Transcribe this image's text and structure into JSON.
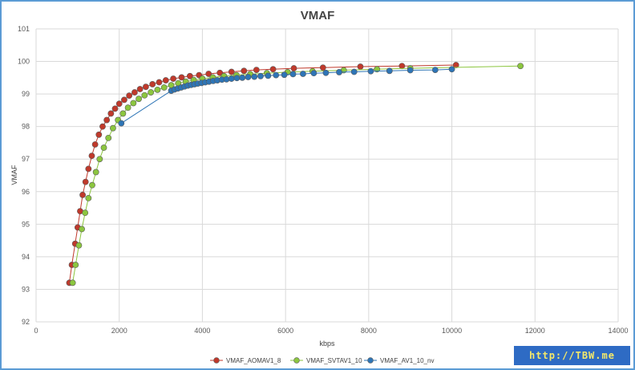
{
  "chart_data": {
    "type": "scatter",
    "title": "VMAF",
    "xlabel": "kbps",
    "ylabel": "VMAF",
    "xlim": [
      0,
      14000
    ],
    "ylim": [
      92,
      101
    ],
    "xticks": [
      0,
      2000,
      4000,
      6000,
      8000,
      10000,
      12000,
      14000
    ],
    "yticks": [
      92,
      93,
      94,
      95,
      96,
      97,
      98,
      99,
      100,
      101
    ],
    "grid": true,
    "legend_position": "bottom",
    "series": [
      {
        "name": "VMAF_AOMAV1_8",
        "color": "#c0392b",
        "x": [
          800,
          860,
          940,
          1000,
          1060,
          1120,
          1190,
          1260,
          1340,
          1420,
          1510,
          1600,
          1700,
          1800,
          1900,
          2000,
          2120,
          2240,
          2370,
          2500,
          2640,
          2800,
          2960,
          3120,
          3300,
          3500,
          3700,
          3920,
          4150,
          4420,
          4700,
          5000,
          5300,
          5700,
          6200,
          6900,
          7800,
          8800,
          10100
        ],
        "y": [
          93.2,
          93.75,
          94.4,
          94.9,
          95.4,
          95.9,
          96.3,
          96.7,
          97.1,
          97.45,
          97.75,
          98.0,
          98.2,
          98.4,
          98.55,
          98.7,
          98.82,
          98.95,
          99.05,
          99.15,
          99.22,
          99.3,
          99.36,
          99.42,
          99.47,
          99.51,
          99.55,
          99.58,
          99.62,
          99.65,
          99.68,
          99.71,
          99.74,
          99.76,
          99.79,
          99.81,
          99.84,
          99.86,
          99.89
        ]
      },
      {
        "name": "VMAF_SVTAV1_10",
        "color": "#8cc63f",
        "x": [
          880,
          950,
          1030,
          1100,
          1180,
          1260,
          1350,
          1440,
          1530,
          1630,
          1740,
          1850,
          1970,
          2090,
          2210,
          2340,
          2470,
          2610,
          2760,
          2920,
          3080,
          3250,
          3420,
          3600,
          3790,
          4000,
          4250,
          4520,
          4820,
          5150,
          5550,
          6050,
          6650,
          7400,
          8200,
          9000,
          11650
        ],
        "y": [
          93.2,
          93.75,
          94.35,
          94.85,
          95.35,
          95.8,
          96.2,
          96.6,
          97.0,
          97.35,
          97.65,
          97.95,
          98.2,
          98.4,
          98.58,
          98.72,
          98.85,
          98.96,
          99.05,
          99.13,
          99.2,
          99.27,
          99.33,
          99.38,
          99.43,
          99.47,
          99.51,
          99.55,
          99.58,
          99.61,
          99.64,
          99.67,
          99.7,
          99.73,
          99.76,
          99.79,
          99.86
        ]
      },
      {
        "name": "VMAF_AV1_10_nv",
        "color": "#2e75b6",
        "x": [
          2050,
          3250,
          3330,
          3410,
          3490,
          3570,
          3650,
          3730,
          3810,
          3890,
          3980,
          4070,
          4160,
          4260,
          4360,
          4470,
          4580,
          4700,
          4830,
          4960,
          5100,
          5250,
          5400,
          5580,
          5770,
          5970,
          6180,
          6420,
          6680,
          6970,
          7290,
          7650,
          8050,
          8500,
          9000,
          9600,
          10000
        ],
        "y": [
          98.1,
          99.1,
          99.14,
          99.17,
          99.2,
          99.23,
          99.26,
          99.28,
          99.3,
          99.32,
          99.34,
          99.36,
          99.38,
          99.4,
          99.42,
          99.44,
          99.45,
          99.47,
          99.49,
          99.5,
          99.52,
          99.53,
          99.55,
          99.56,
          99.58,
          99.59,
          99.61,
          99.62,
          99.64,
          99.65,
          99.67,
          99.68,
          99.7,
          99.71,
          99.73,
          99.74,
          99.76
        ]
      }
    ]
  },
  "watermark_text": "http://TBW.me"
}
